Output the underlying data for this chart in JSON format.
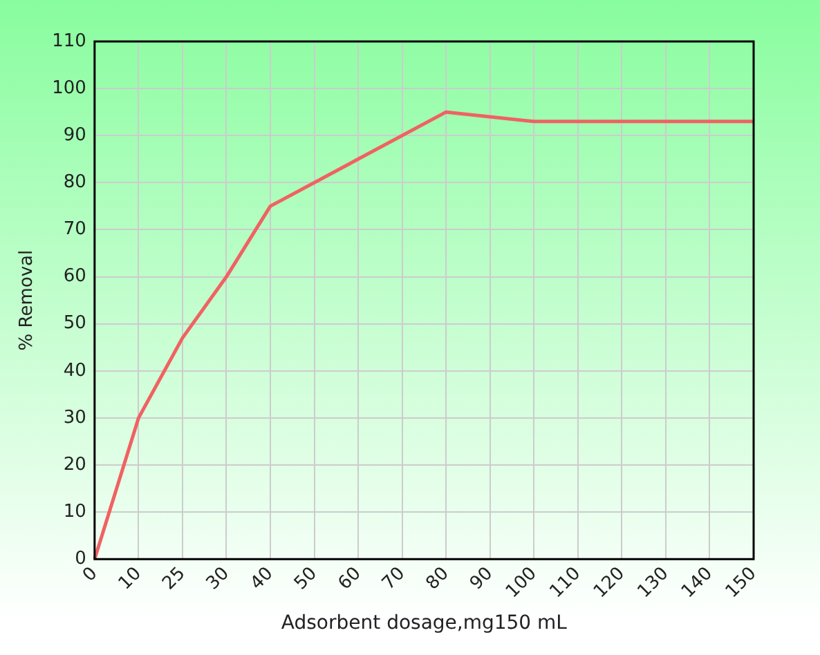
{
  "chart_data": {
    "type": "line",
    "xlabel": "Adsorbent dosage,mg150 mL",
    "ylabel": "% Removal",
    "categories": [
      "0",
      "10",
      "25",
      "30",
      "40",
      "50",
      "60",
      "70",
      "80",
      "90",
      "100",
      "110",
      "120",
      "130",
      "140",
      "150"
    ],
    "series": [
      {
        "color": "#f06262",
        "values": [
          0,
          30,
          47,
          60,
          75,
          null,
          null,
          null,
          95,
          null,
          93,
          null,
          null,
          null,
          null,
          93
        ]
      }
    ],
    "ylim": [
      0,
      110
    ],
    "yticks": [
      0,
      10,
      20,
      30,
      40,
      50,
      60,
      70,
      80,
      90,
      100,
      110
    ],
    "grid": true,
    "legend": false,
    "marker": "none",
    "line_style": "solid"
  }
}
